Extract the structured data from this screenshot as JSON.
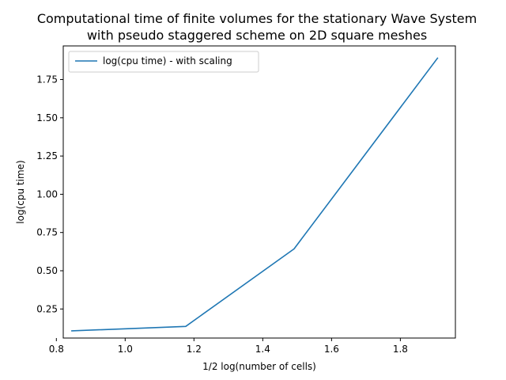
{
  "chart_data": {
    "type": "line",
    "title_lines": [
      "Computational time of finite volumes for the stationary Wave System",
      "with pseudo staggered scheme on 2D square meshes"
    ],
    "xlabel": "1/2 log(number of cells)",
    "ylabel": "log(cpu time)",
    "xlim": [
      0.82,
      1.96
    ],
    "ylim": [
      0.06,
      1.97
    ],
    "xticks": [
      0.8,
      1.0,
      1.2,
      1.4,
      1.6,
      1.8
    ],
    "xtick_labels": [
      "0.8",
      "1.0",
      "1.2",
      "1.4",
      "1.6",
      "1.8"
    ],
    "yticks": [
      0.25,
      0.5,
      0.75,
      1.0,
      1.25,
      1.5,
      1.75
    ],
    "ytick_labels": [
      "0.25",
      "0.50",
      "0.75",
      "1.00",
      "1.25",
      "1.50",
      "1.75"
    ],
    "grid": false,
    "legend_position": "top-left",
    "series": [
      {
        "name": "log(cpu time) - with scaling",
        "color": "#1f77b4",
        "x": [
          0.845,
          1.176,
          1.491,
          1.908
        ],
        "y": [
          0.107,
          0.136,
          0.643,
          1.89
        ]
      }
    ]
  }
}
